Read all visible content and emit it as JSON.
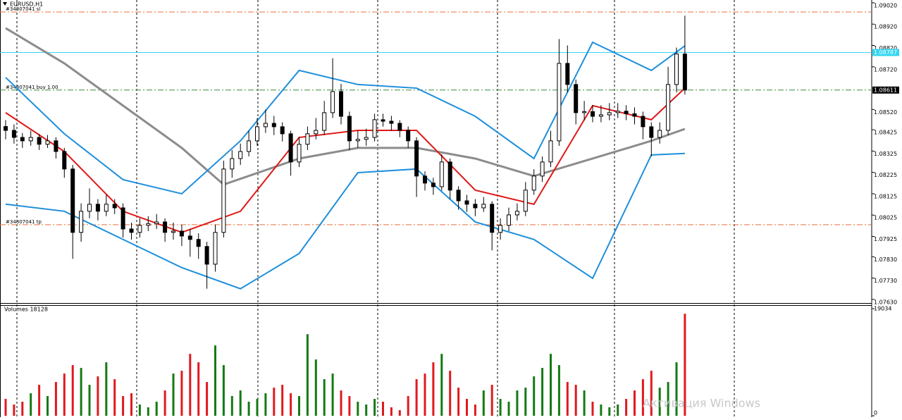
{
  "chart_data": [
    {
      "type": "candlestick",
      "title": "EURUSD,H1",
      "ylim": [
        1.07613,
        1.09033
      ],
      "yticks": [
        {
          "value": 1.0902,
          "label": "1.09020"
        },
        {
          "value": 1.0892,
          "label": "1.08920"
        },
        {
          "value": 1.0882,
          "label": "1.08820"
        },
        {
          "value": 1.0872,
          "label": "1.08720"
        },
        {
          "value": 1.0852,
          "label": "1.08520"
        },
        {
          "value": 1.08425,
          "label": "1.08425"
        },
        {
          "value": 1.08325,
          "label": "1.08325"
        },
        {
          "value": 1.08225,
          "label": "1.08225"
        },
        {
          "value": 1.08125,
          "label": "1.08125"
        },
        {
          "value": 1.08025,
          "label": "1.08025"
        },
        {
          "value": 1.07925,
          "label": "1.07925"
        },
        {
          "value": 1.0783,
          "label": "1.07830"
        },
        {
          "value": 1.0773,
          "label": "1.07730"
        },
        {
          "value": 1.0763,
          "label": "1.07630"
        }
      ],
      "up_color": "#ffffff",
      "down_color": "#000000",
      "candles": [
        [
          1.0844,
          1.0847,
          1.0838,
          1.08422
        ],
        [
          1.08422,
          1.0845,
          1.0836,
          1.08389
        ],
        [
          1.08389,
          1.0841,
          1.0834,
          1.08373
        ],
        [
          1.08373,
          1.0842,
          1.0835,
          1.08389
        ],
        [
          1.08389,
          1.08405,
          1.0833,
          1.08357
        ],
        [
          1.08357,
          1.084,
          1.0834,
          1.08373
        ],
        [
          1.08373,
          1.0839,
          1.0829,
          1.08323
        ],
        [
          1.08323,
          1.0834,
          1.082,
          1.08241
        ],
        [
          1.08241,
          1.0826,
          1.0782,
          1.07944
        ],
        [
          1.07944,
          1.0808,
          1.079,
          1.08043
        ],
        [
          1.08043,
          1.0815,
          1.0801,
          1.08076
        ],
        [
          1.08076,
          1.081,
          1.08,
          1.08043
        ],
        [
          1.08043,
          1.0812,
          1.0802,
          1.08076
        ],
        [
          1.08076,
          1.081,
          1.0803,
          1.08059
        ],
        [
          1.08059,
          1.0808,
          1.0792,
          1.0796
        ],
        [
          1.0796,
          1.0799,
          1.0791,
          1.07944
        ],
        [
          1.07944,
          1.0801,
          1.0792,
          1.07977
        ],
        [
          1.07977,
          1.0802,
          1.0795,
          1.07985
        ],
        [
          1.07985,
          1.0803,
          1.0796,
          1.07993
        ],
        [
          1.07993,
          1.0801,
          1.079,
          1.07944
        ],
        [
          1.07944,
          1.0799,
          1.0791,
          1.0795
        ],
        [
          1.0795,
          1.0798,
          1.0788,
          1.07927
        ],
        [
          1.07927,
          1.0796,
          1.0783,
          1.07911
        ],
        [
          1.07911,
          1.0794,
          1.0782,
          1.07878
        ],
        [
          1.07878,
          1.079,
          1.0768,
          1.07795
        ],
        [
          1.07795,
          1.0798,
          1.0776,
          1.07944
        ],
        [
          1.07944,
          1.0828,
          1.0792,
          1.08241
        ],
        [
          1.08241,
          1.0833,
          1.082,
          1.0829
        ],
        [
          1.0829,
          1.0836,
          1.0826,
          1.08323
        ],
        [
          1.08323,
          1.0842,
          1.083,
          1.08373
        ],
        [
          1.08373,
          1.0848,
          1.0835,
          1.08439
        ],
        [
          1.08439,
          1.0852,
          1.0841,
          1.08455
        ],
        [
          1.08455,
          1.0849,
          1.084,
          1.08439
        ],
        [
          1.08439,
          1.0846,
          1.0837,
          1.08406
        ],
        [
          1.08406,
          1.0842,
          1.0821,
          1.08274
        ],
        [
          1.08274,
          1.0839,
          1.0825,
          1.08357
        ],
        [
          1.08357,
          1.0844,
          1.0833,
          1.08406
        ],
        [
          1.08406,
          1.0848,
          1.0838,
          1.08422
        ],
        [
          1.08422,
          1.0856,
          1.084,
          1.08505
        ],
        [
          1.08505,
          1.0876,
          1.0848,
          1.08604
        ],
        [
          1.08604,
          1.0864,
          1.0845,
          1.08488
        ],
        [
          1.08488,
          1.0851,
          1.0833,
          1.08373
        ],
        [
          1.08373,
          1.0842,
          1.0834,
          1.0838
        ],
        [
          1.0838,
          1.0843,
          1.0835,
          1.08389
        ],
        [
          1.08389,
          1.085,
          1.0837,
          1.08472
        ],
        [
          1.08472,
          1.085,
          1.0844,
          1.08465
        ],
        [
          1.08465,
          1.0849,
          1.0842,
          1.08455
        ],
        [
          1.08455,
          1.0847,
          1.0839,
          1.08422
        ],
        [
          1.08422,
          1.0844,
          1.0834,
          1.08373
        ],
        [
          1.08373,
          1.0839,
          1.0811,
          1.08208
        ],
        [
          1.08208,
          1.0823,
          1.0814,
          1.08175
        ],
        [
          1.08175,
          1.082,
          1.0812,
          1.08158
        ],
        [
          1.08158,
          1.0831,
          1.0814,
          1.08274
        ],
        [
          1.08274,
          1.0829,
          1.081,
          1.08142
        ],
        [
          1.08142,
          1.0816,
          1.0805,
          1.08092
        ],
        [
          1.08092,
          1.0812,
          1.0804,
          1.08076
        ],
        [
          1.08076,
          1.081,
          1.0802,
          1.08059
        ],
        [
          1.08059,
          1.0811,
          1.0804,
          1.08076
        ],
        [
          1.08076,
          1.0809,
          1.0786,
          1.07944
        ],
        [
          1.07944,
          1.0801,
          1.0791,
          1.07977
        ],
        [
          1.07977,
          1.0806,
          1.0795,
          1.08026
        ],
        [
          1.08026,
          1.0808,
          1.08,
          1.08043
        ],
        [
          1.08043,
          1.0818,
          1.0802,
          1.08142
        ],
        [
          1.08142,
          1.0824,
          1.0812,
          1.08208
        ],
        [
          1.08208,
          1.083,
          1.0818,
          1.08274
        ],
        [
          1.08274,
          1.0842,
          1.0825,
          1.08373
        ],
        [
          1.08373,
          1.0885,
          1.0835,
          1.08736
        ],
        [
          1.08736,
          1.0882,
          1.086,
          1.08637
        ],
        [
          1.08637,
          1.0866,
          1.0845,
          1.08505
        ],
        [
          1.08505,
          1.0856,
          1.0847,
          1.0851
        ],
        [
          1.0851,
          1.0854,
          1.0846,
          1.08488
        ],
        [
          1.08488,
          1.0854,
          1.0846,
          1.08495
        ],
        [
          1.08495,
          1.0855,
          1.0847,
          1.08505
        ],
        [
          1.08505,
          1.0855,
          1.0848,
          1.08512
        ],
        [
          1.08512,
          1.0854,
          1.0847,
          1.085
        ],
        [
          1.085,
          1.0853,
          1.0845,
          1.08488
        ],
        [
          1.08488,
          1.0851,
          1.0838,
          1.08439
        ],
        [
          1.08439,
          1.0846,
          1.083,
          1.08389
        ],
        [
          1.08389,
          1.0846,
          1.0836,
          1.08422
        ],
        [
          1.08422,
          1.0872,
          1.084,
          1.08637
        ],
        [
          1.08637,
          1.0881,
          1.086,
          1.0878
        ],
        [
          1.0878,
          1.0896,
          1.0859,
          1.08611
        ]
      ],
      "lines": [
        {
          "color": "#8c8c8c",
          "width": 3,
          "x": [
            1,
            8,
            15,
            22,
            27,
            36,
            43,
            50,
            57,
            64,
            71,
            78,
            82
          ],
          "values": [
            1.08901,
            1.08736,
            1.08538,
            1.0834,
            1.08168,
            1.0829,
            1.0834,
            1.0834,
            1.0829,
            1.08208,
            1.0829,
            1.08373,
            1.08429
          ]
        },
        {
          "color": "#1e8fdc",
          "width": 2,
          "x": [
            1,
            8,
            15,
            22,
            29,
            36,
            43,
            50,
            57,
            64,
            71,
            78,
            82
          ],
          "values": [
            1.0867,
            1.08406,
            1.08191,
            1.08125,
            1.08373,
            1.08703,
            1.08637,
            1.0862,
            1.08488,
            1.0829,
            1.08835,
            1.08703,
            1.08818
          ]
        },
        {
          "color": "#1e8fdc",
          "width": 2,
          "x": [
            1,
            8,
            15,
            22,
            29,
            36,
            43,
            50,
            57,
            64,
            71,
            78,
            82
          ],
          "values": [
            1.08076,
            1.08043,
            1.07911,
            1.07779,
            1.0768,
            1.07845,
            1.08224,
            1.08241,
            1.07993,
            1.07911,
            1.07729,
            1.08307,
            1.08314
          ]
        },
        {
          "color": "#e01818",
          "width": 2,
          "x": [
            1,
            8,
            15,
            22,
            29,
            36,
            43,
            50,
            57,
            64,
            71,
            78,
            82
          ],
          "values": [
            1.08505,
            1.08323,
            1.08043,
            1.07944,
            1.08043,
            1.08389,
            1.08422,
            1.08422,
            1.08142,
            1.08076,
            1.08538,
            1.08472,
            1.0862
          ]
        }
      ],
      "levels": [
        {
          "name": "#34807041 sl",
          "value": 1.08977,
          "color": "#e8703a",
          "style": "dashdot"
        },
        {
          "value": 1.08787,
          "label": "1.08787",
          "color": "#33d6f0",
          "style": "solid"
        },
        {
          "name": "#34807041 buy 1.00",
          "value": 1.08611,
          "label": "1.08611",
          "color": "#3c8c3c",
          "style": "dashdot"
        },
        {
          "name": "#34807041 tp",
          "value": 1.0798,
          "color": "#e8703a",
          "style": "dashdot"
        }
      ]
    },
    {
      "type": "volume",
      "title": "Volumes 18128",
      "ylim": [
        0,
        19784
      ],
      "yticks": [
        0,
        19034
      ],
      "up_color": "#137a13",
      "down_color": "#e0191e",
      "values": [
        3000,
        2000,
        2500,
        4000,
        5500,
        3500,
        6000,
        7500,
        9000,
        8500,
        5500,
        7000,
        9500,
        6500,
        3500,
        4000,
        2000,
        1500,
        2500,
        4500,
        7500,
        8000,
        11000,
        9500,
        6000,
        12500,
        9000,
        3500,
        4500,
        2500,
        3000,
        4000,
        5000,
        5500,
        4000,
        3500,
        14500,
        10000,
        6500,
        7500,
        4500,
        3500,
        2500,
        2000,
        3000,
        2500,
        1500,
        1000,
        3500,
        6500,
        7500,
        9500,
        11000,
        8000,
        5000,
        3000,
        2000,
        4500,
        5500,
        3000,
        2500,
        4500,
        5000,
        7000,
        8500,
        11000,
        9000,
        6000,
        5500,
        4500,
        2500,
        2000,
        1500,
        2000,
        3000,
        4500,
        6500,
        8000,
        5000,
        6000,
        9500,
        18128
      ],
      "watermark": "Активация Windows"
    }
  ]
}
